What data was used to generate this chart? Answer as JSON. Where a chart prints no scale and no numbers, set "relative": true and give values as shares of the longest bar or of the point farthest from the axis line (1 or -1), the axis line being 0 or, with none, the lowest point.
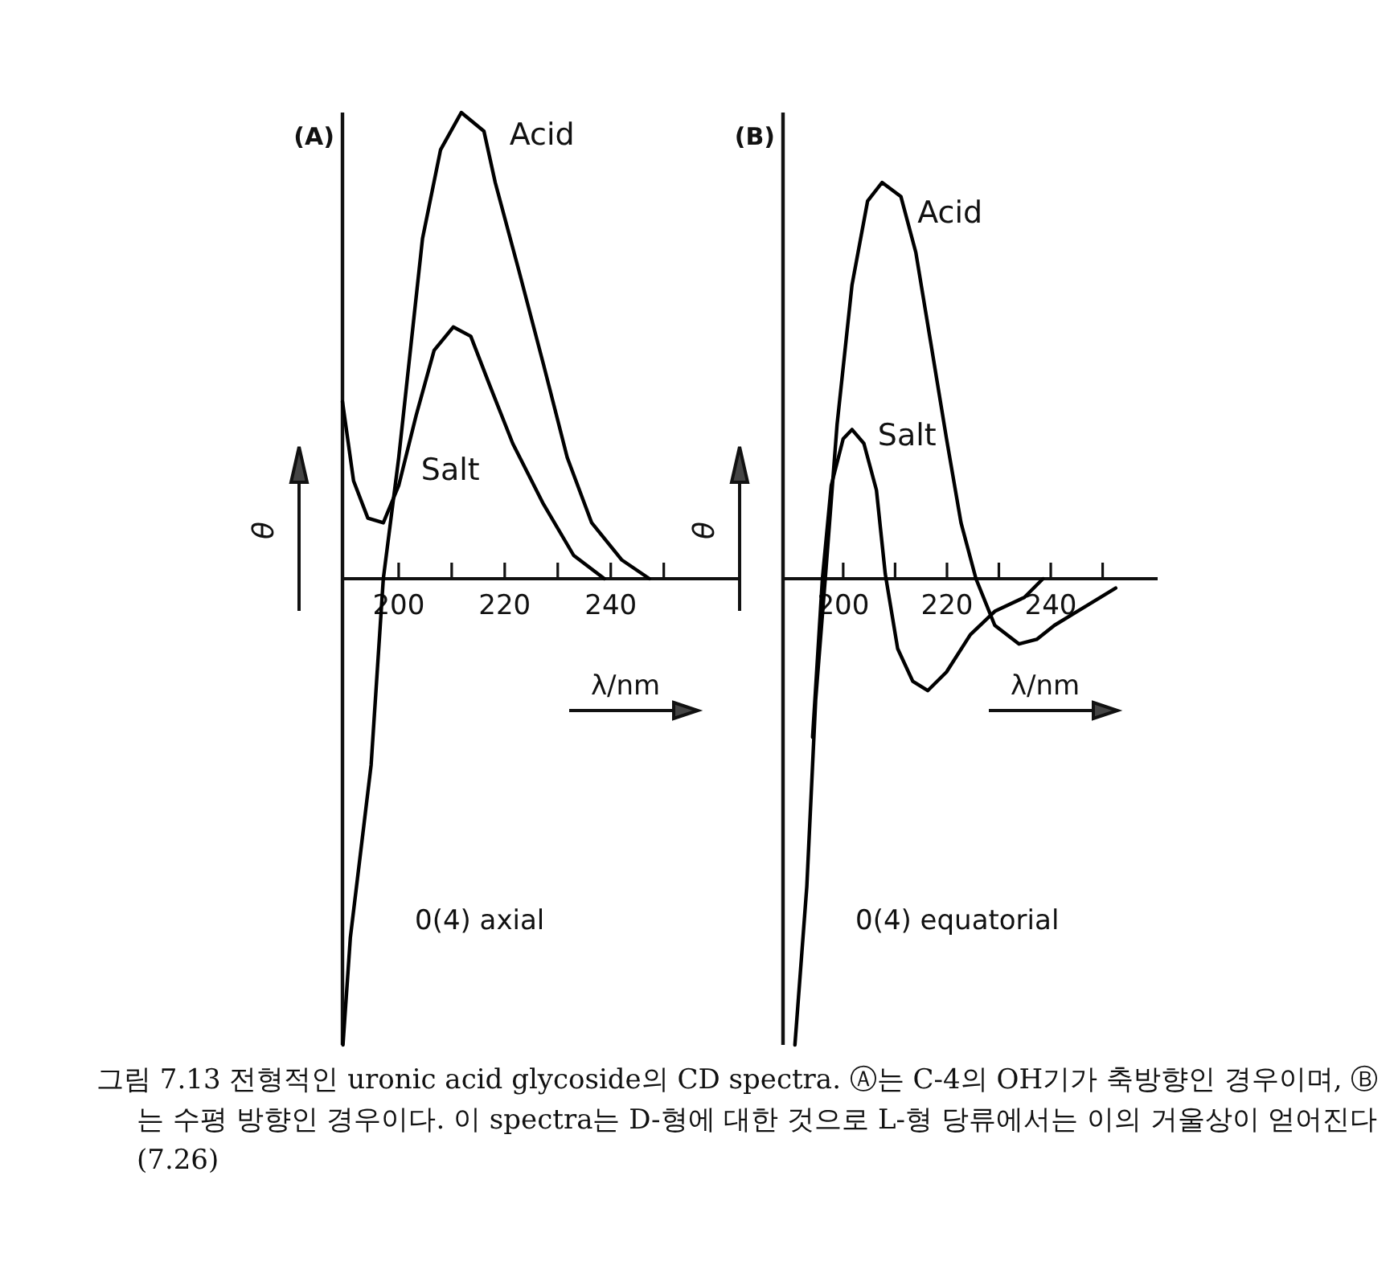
{
  "chart_data": [
    {
      "type": "line",
      "title": "(A)",
      "xlabel": "λ/nm",
      "ylabel": "θ",
      "relative": true,
      "xlim": [
        189.4,
        264
      ],
      "xticks": [
        200,
        {
          "value": 210,
          "label": null
        },
        220,
        {
          "value": 230,
          "label": null
        },
        240,
        {
          "value": 250,
          "label": null
        }
      ],
      "grid": false,
      "legend": false,
      "marker": "none",
      "line_style": "solid",
      "series": [
        {
          "name": "Acid",
          "color": "#000000",
          "x": [
            189.5,
            190.9,
            194.8,
            197.1,
            200.0,
            204.5,
            207.9,
            211.8,
            216.1,
            218.2,
            222.7,
            227.3,
            231.8,
            236.4,
            242.1,
            247.3
          ],
          "values": [
            -1.0,
            -0.77,
            -0.4,
            0,
            0.26,
            0.73,
            0.92,
            1.0,
            0.96,
            0.85,
            0.66,
            0.46,
            0.26,
            0.12,
            0.04,
            0
          ]
        },
        {
          "name": "Salt",
          "color": "#000000",
          "x": [
            189.4,
            191.5,
            194.2,
            197.1,
            200.0,
            203.3,
            206.7,
            210.3,
            213.6,
            217.0,
            221.5,
            227.3,
            233.0,
            238.8
          ],
          "values": [
            0.38,
            0.21,
            0.13,
            0.12,
            0.2,
            0.35,
            0.49,
            0.54,
            0.52,
            0.42,
            0.29,
            0.16,
            0.05,
            0
          ]
        }
      ],
      "annotations": [
        "0(4) axial"
      ]
    },
    {
      "type": "line",
      "title": "(B)",
      "xlabel": "λ/nm",
      "ylabel": "θ",
      "relative": true,
      "xlim": [
        188.4,
        260.6
      ],
      "xticks": [
        200,
        {
          "value": 210,
          "label": null
        },
        220,
        {
          "value": 230,
          "label": null
        },
        240,
        {
          "value": 250,
          "label": null
        }
      ],
      "grid": false,
      "legend": false,
      "marker": "none",
      "line_style": "solid",
      "series": [
        {
          "name": "Acid",
          "color": "#000000",
          "x": [
            190.7,
            193.0,
            194.7,
            196.6,
            198.8,
            201.7,
            204.7,
            207.5,
            211.1,
            214.0,
            216.8,
            219.9,
            222.7,
            225.6,
            229.2,
            233.9,
            237.3,
            240.7,
            246.6,
            252.5
          ],
          "values": [
            -1.0,
            -0.66,
            -0.26,
            0.01,
            0.33,
            0.63,
            0.81,
            0.85,
            0.82,
            0.7,
            0.51,
            0.3,
            0.12,
            0,
            -0.1,
            -0.14,
            -0.13,
            -0.1,
            -0.06,
            -0.02
          ]
        },
        {
          "name": "Salt",
          "color": "#000000",
          "x": [
            194.1,
            196.0,
            197.7,
            200.0,
            201.7,
            204.0,
            206.4,
            208.1,
            210.5,
            213.4,
            216.3,
            219.9,
            224.5,
            229.2,
            234.9,
            238.5
          ],
          "values": [
            -0.34,
            0,
            0.2,
            0.3,
            0.32,
            0.29,
            0.19,
            0.01,
            -0.15,
            -0.22,
            -0.24,
            -0.2,
            -0.12,
            -0.07,
            -0.04,
            0
          ]
        }
      ],
      "annotations": [
        "0(4) equatorial",
        "그림 7.13 전형적인 uronic acid glycoside의 CD spectra. Ⓐ는 C-4의 OH기가 축방향인 경우이며, Ⓑ는 수평 방향인 경우이다. 이 spectra는 D-형에 대한 것으로 L-형 당류에서는 이의 거울상이 얻어진다 (7.26)"
      ]
    }
  ]
}
